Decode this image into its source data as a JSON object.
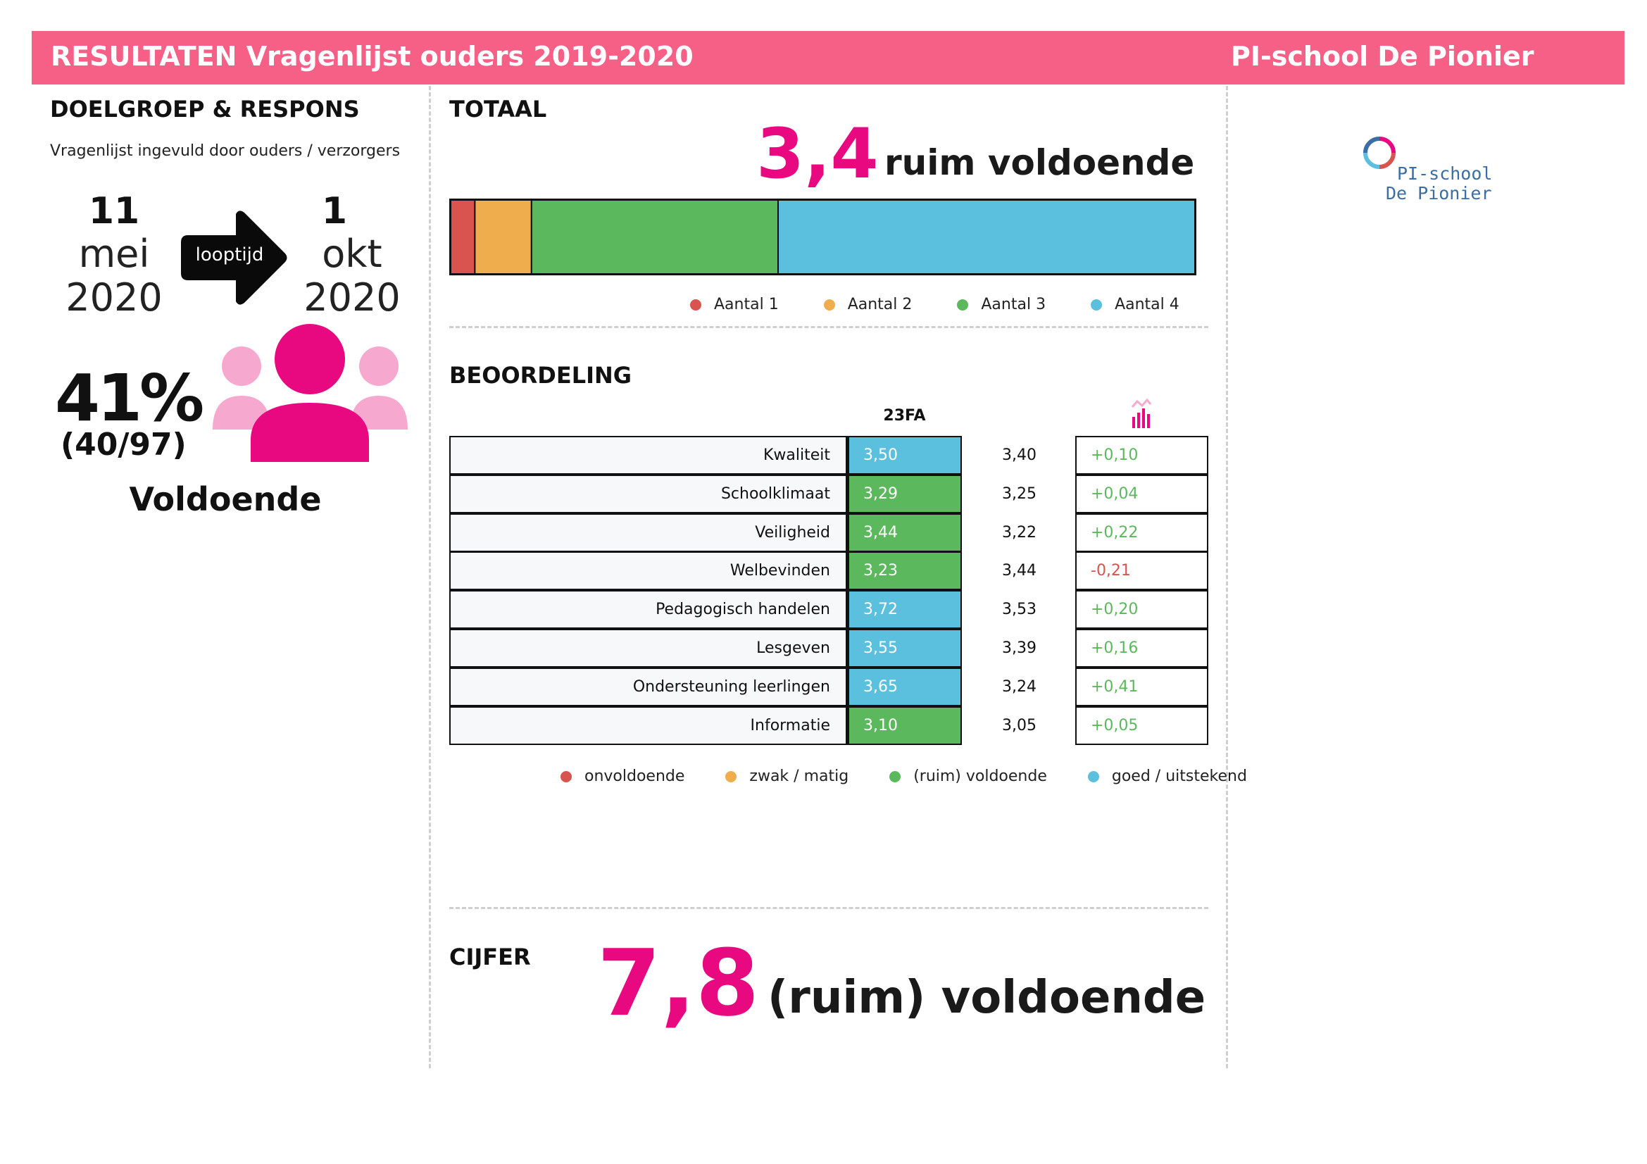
{
  "header": {
    "title": "RESULTATEN Vragenlijst ouders 2019-2020",
    "school": "PI-school De Pionier"
  },
  "doelgroep": {
    "heading": "DOELGROEP & RESPONS",
    "subtitle": "Vragenlijst ingevuld door ouders / verzorgers",
    "start": {
      "day": "11",
      "month": "mei",
      "year": "2020"
    },
    "arrow_label": "looptijd",
    "end": {
      "day": "1",
      "month": "okt",
      "year": "2020"
    },
    "response_pct": "41%",
    "response_count": "(40/97)",
    "response_rating": "Voldoende"
  },
  "totaal": {
    "heading": "TOTAAL",
    "score": "3,4",
    "label": "ruim voldoende",
    "legend": [
      {
        "label": "Aantal 1",
        "color": "#d9534f"
      },
      {
        "label": "Aantal 2",
        "color": "#f0ad4e"
      },
      {
        "label": "Aantal 3",
        "color": "#5cb85c"
      },
      {
        "label": "Aantal 4",
        "color": "#5bc0de"
      }
    ]
  },
  "chart_data": {
    "type": "bar",
    "orientation": "horizontal-stacked",
    "series": [
      {
        "name": "Aantal 1",
        "values": [
          3.3
        ]
      },
      {
        "name": "Aantal 2",
        "values": [
          7.6
        ]
      },
      {
        "name": "Aantal 3",
        "values": [
          33.1
        ]
      },
      {
        "name": "Aantal 4",
        "values": [
          56.0
        ]
      }
    ],
    "xlim": [
      0,
      100
    ],
    "colors": [
      "#d9534f",
      "#f0ad4e",
      "#5cb85c",
      "#5bc0de"
    ]
  },
  "beoordeling": {
    "heading": "BEOORDELING",
    "col_header": "23FA",
    "rows": [
      {
        "label": "Kwaliteit",
        "value": "3,50",
        "level": "goed",
        "ref": "3,40",
        "diff": "+0,10",
        "sign": "pos"
      },
      {
        "label": "Schoolklimaat",
        "value": "3,29",
        "level": "voldoende",
        "ref": "3,25",
        "diff": "+0,04",
        "sign": "pos"
      },
      {
        "label": "Veiligheid",
        "value": "3,44",
        "level": "voldoende",
        "ref": "3,22",
        "diff": "+0,22",
        "sign": "pos"
      },
      {
        "label": "Welbevinden",
        "value": "3,23",
        "level": "voldoende",
        "ref": "3,44",
        "diff": "-0,21",
        "sign": "neg"
      },
      {
        "label": "Pedagogisch handelen",
        "value": "3,72",
        "level": "goed",
        "ref": "3,53",
        "diff": "+0,20",
        "sign": "pos"
      },
      {
        "label": "Lesgeven",
        "value": "3,55",
        "level": "goed",
        "ref": "3,39",
        "diff": "+0,16",
        "sign": "pos"
      },
      {
        "label": "Ondersteuning leerlingen",
        "value": "3,65",
        "level": "goed",
        "ref": "3,24",
        "diff": "+0,41",
        "sign": "pos"
      },
      {
        "label": "Informatie",
        "value": "3,10",
        "level": "voldoende",
        "ref": "3,05",
        "diff": "+0,05",
        "sign": "pos"
      }
    ],
    "level_colors": {
      "goed": "#5bc0de",
      "voldoende": "#5cb85c"
    },
    "legend": [
      {
        "label": "onvoldoende",
        "color": "#d9534f"
      },
      {
        "label": "zwak / matig",
        "color": "#f0ad4e"
      },
      {
        "label": "(ruim) voldoende",
        "color": "#5cb85c"
      },
      {
        "label": "goed / uitstekend",
        "color": "#5bc0de"
      }
    ]
  },
  "cijfer": {
    "heading": "CIJFER",
    "score": "7,8",
    "label": "(ruim) voldoende"
  },
  "logo": {
    "line1": "PI-school",
    "line2": "De Pionier"
  },
  "colors": {
    "header": "#f65f86",
    "accent": "#e8087f",
    "accent_light": "#f7a8cf"
  }
}
